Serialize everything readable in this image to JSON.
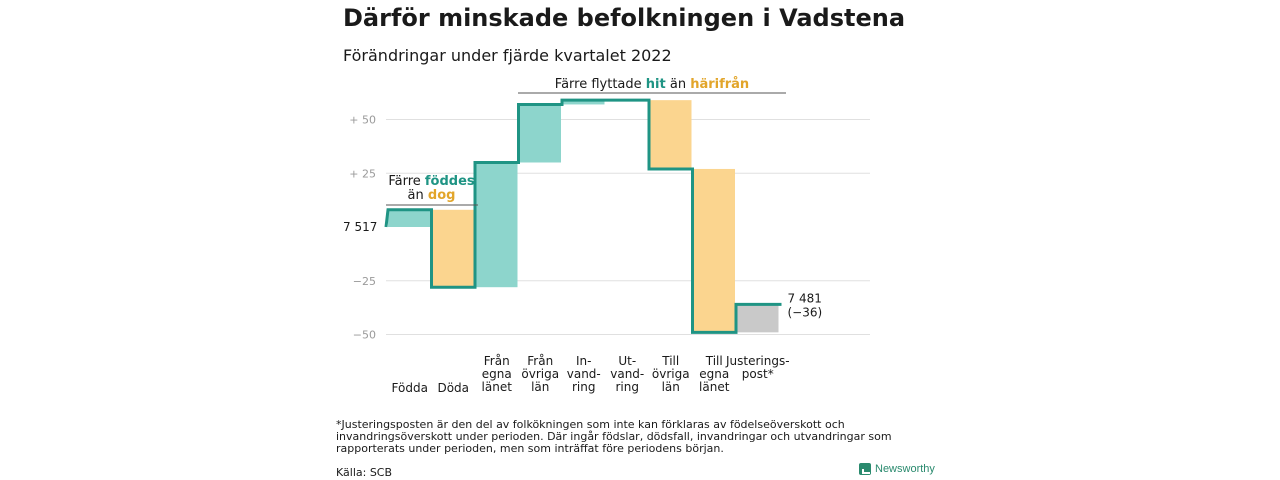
{
  "header": {
    "title": "Därför minskade befolkningen i Vadstena",
    "subtitle": "Förändringar under fjärde kvartalet 2022"
  },
  "footer": {
    "footnote": "*Justeringsposten är den del av folkökningen som inte kan förklaras av födelseöverskott och invandringsöverskott under perioden. Där ingår födslar, dödsfall, invandringar och utvandringar som rapporterats under perioden, men som inträffat före periodens början.",
    "source": "Källa: SCB",
    "brand": "Newsworthy"
  },
  "colors": {
    "line": "#1f9484",
    "inflow": "#8dd5cc",
    "outflow": "#fbd58f",
    "adjustment": "#c9c9c9",
    "axis_text": "#9a9a9a",
    "grid": "#e0e0e0",
    "hit": "#1f9484",
    "harifran": "#e2a52a"
  },
  "chart_data": {
    "type": "waterfall",
    "start_value": 7517,
    "start_label": "7 517",
    "end_value": 7481,
    "end_label": "7 481",
    "end_change_label": "(−36)",
    "ylim": [
      -55,
      60
    ],
    "yticks": [
      {
        "value": 50,
        "label": "+ 50"
      },
      {
        "value": 25,
        "label": "+ 25"
      },
      {
        "value": -25,
        "label": "−25"
      },
      {
        "value": -50,
        "label": "−50"
      }
    ],
    "steps": [
      {
        "label_lines": [
          "Födda"
        ],
        "value": 8,
        "kind": "inflow"
      },
      {
        "label_lines": [
          "Döda"
        ],
        "value": -36,
        "kind": "outflow"
      },
      {
        "label_lines": [
          "Från",
          "egna",
          "länet"
        ],
        "value": 58,
        "kind": "inflow"
      },
      {
        "label_lines": [
          "Från",
          "övriga",
          "län"
        ],
        "value": 27,
        "kind": "inflow"
      },
      {
        "label_lines": [
          "In-",
          "vand-",
          "ring"
        ],
        "value": 2,
        "kind": "inflow"
      },
      {
        "label_lines": [
          "Ut-",
          "vand-",
          "ring"
        ],
        "value": 0,
        "kind": "outflow"
      },
      {
        "label_lines": [
          "Till",
          "övriga",
          "län"
        ],
        "value": -32,
        "kind": "outflow"
      },
      {
        "label_lines": [
          "Till",
          "egna",
          "länet"
        ],
        "value": -76,
        "kind": "outflow"
      },
      {
        "label_lines": [
          "Justerings-",
          "post*"
        ],
        "value": 13,
        "kind": "adjustment"
      }
    ],
    "annotations": [
      {
        "text_parts": [
          {
            "text": "Färre ",
            "color": "default"
          },
          {
            "text": "föddes",
            "color": "hit"
          },
          {
            "text": "\nän ",
            "color": "default"
          },
          {
            "text": "dog",
            "color": "harifran"
          }
        ]
      },
      {
        "text_parts": [
          {
            "text": "Färre flyttade ",
            "color": "default"
          },
          {
            "text": "hit",
            "color": "hit"
          },
          {
            "text": " än ",
            "color": "default"
          },
          {
            "text": "härifrån",
            "color": "harifran"
          }
        ]
      }
    ]
  }
}
